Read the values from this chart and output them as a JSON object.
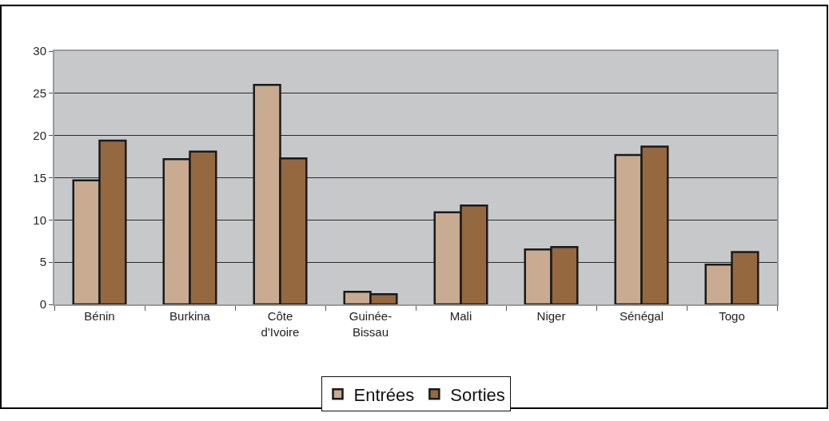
{
  "chart_data": {
    "type": "bar",
    "categories": [
      "Bénin",
      "Burkina",
      "Côte d'Ivoire",
      "Guinée-Bissau",
      "Mali",
      "Niger",
      "Sénégal",
      "Togo"
    ],
    "series": [
      {
        "name": "Entrées",
        "color": "#c9ab91",
        "values": [
          14.7,
          17.2,
          26.0,
          1.5,
          10.9,
          6.5,
          17.7,
          4.7
        ]
      },
      {
        "name": "Sorties",
        "color": "#96683f",
        "values": [
          19.4,
          18.1,
          17.3,
          1.2,
          11.7,
          6.8,
          18.7,
          6.2
        ]
      }
    ],
    "ylim": [
      0,
      30
    ],
    "yticks": [
      0,
      5,
      10,
      15,
      20,
      25,
      30
    ],
    "grid": "y",
    "legend": "bottom"
  }
}
